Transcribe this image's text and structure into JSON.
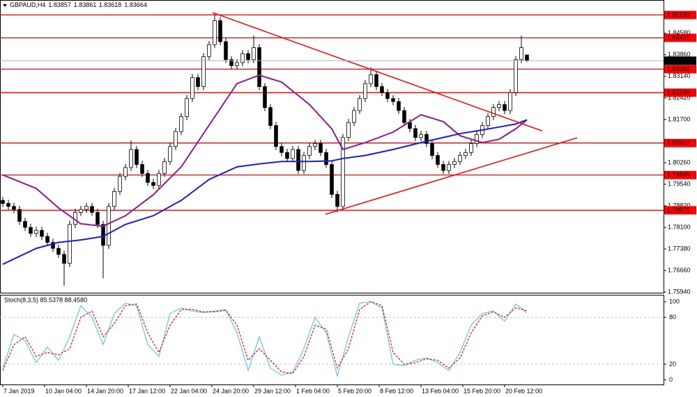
{
  "chart_data": [
    {
      "type": "candlestick",
      "title": "GBPAUD,H4",
      "up_color": "#ffffff",
      "down_color": "#000000",
      "wick_color": "#000000",
      "open": [
        1.79,
        1.789,
        1.788,
        1.787,
        1.783,
        1.781,
        1.779,
        1.78,
        1.778,
        1.776,
        1.774,
        1.772,
        1.769,
        1.782,
        1.786,
        1.787,
        1.788,
        1.786,
        1.782,
        1.775,
        1.788,
        1.793,
        1.798,
        1.801,
        1.807,
        1.802,
        1.799,
        1.796,
        1.795,
        1.799,
        1.803,
        1.808,
        1.813,
        1.818,
        1.824,
        1.831,
        1.828,
        1.838,
        1.842,
        1.85,
        1.843,
        1.837,
        1.835,
        1.836,
        1.839,
        1.837,
        1.841,
        1.828,
        1.821,
        1.815,
        1.808,
        1.806,
        1.804,
        1.807,
        1.8,
        1.805,
        1.808,
        1.809,
        1.806,
        1.802,
        1.792,
        1.788,
        1.811,
        1.816,
        1.82,
        1.824,
        1.829,
        1.832,
        1.828,
        1.826,
        1.824,
        1.823,
        1.82,
        1.816,
        1.814,
        1.811,
        1.812,
        1.809,
        1.805,
        1.802,
        1.8,
        1.802,
        1.803,
        1.805,
        1.806,
        1.809,
        1.812,
        1.815,
        1.818,
        1.821,
        1.822,
        1.82,
        1.826,
        1.837,
        1.83857
      ],
      "high": [
        1.7912,
        1.7902,
        1.7892,
        1.7882,
        1.7842,
        1.7822,
        1.7812,
        1.7812,
        1.7792,
        1.7772,
        1.7752,
        1.7732,
        1.7832,
        1.7872,
        1.7882,
        1.7892,
        1.7892,
        1.7872,
        1.7832,
        1.7892,
        1.7942,
        1.7992,
        1.8022,
        1.81,
        1.8082,
        1.8032,
        1.8002,
        1.7972,
        1.8002,
        1.8042,
        1.8092,
        1.8142,
        1.8192,
        1.8252,
        1.8322,
        1.8322,
        1.8392,
        1.8432,
        1.8525,
        1.8512,
        1.8442,
        1.8382,
        1.8372,
        1.8402,
        1.8402,
        1.845,
        1.8422,
        1.8292,
        1.8222,
        1.8162,
        1.8092,
        1.8072,
        1.8082,
        1.8082,
        1.8062,
        1.8092,
        1.8102,
        1.8102,
        1.8072,
        1.8032,
        1.7932,
        1.8122,
        1.8172,
        1.8212,
        1.8252,
        1.8302,
        1.8345,
        1.8332,
        1.8292,
        1.8272,
        1.8252,
        1.8242,
        1.8212,
        1.8172,
        1.8152,
        1.8132,
        1.8132,
        1.8102,
        1.8062,
        1.8032,
        1.8032,
        1.8042,
        1.8062,
        1.8072,
        1.8102,
        1.8132,
        1.8162,
        1.8192,
        1.8222,
        1.8232,
        1.8232,
        1.8272,
        1.8382,
        1.845,
        1.83861
      ],
      "low": [
        1.7878,
        1.7868,
        1.7858,
        1.7818,
        1.7798,
        1.7778,
        1.7778,
        1.7768,
        1.7748,
        1.7728,
        1.7708,
        1.7615,
        1.7678,
        1.7808,
        1.7848,
        1.7858,
        1.7848,
        1.7808,
        1.764,
        1.7738,
        1.7868,
        1.7918,
        1.7968,
        1.7998,
        1.8008,
        1.7978,
        1.7948,
        1.7938,
        1.7938,
        1.7978,
        1.8018,
        1.8068,
        1.8118,
        1.8168,
        1.8228,
        1.8268,
        1.8268,
        1.8368,
        1.8408,
        1.8418,
        1.8358,
        1.8338,
        1.8338,
        1.8348,
        1.8358,
        1.8358,
        1.8268,
        1.8198,
        1.8138,
        1.8068,
        1.8048,
        1.8028,
        1.8028,
        1.7988,
        1.7988,
        1.8038,
        1.8068,
        1.8048,
        1.8008,
        1.7908,
        1.786,
        1.7868,
        1.8098,
        1.8148,
        1.8188,
        1.8228,
        1.8278,
        1.8268,
        1.8248,
        1.8228,
        1.8218,
        1.8188,
        1.8148,
        1.8128,
        1.8098,
        1.8098,
        1.8078,
        1.8038,
        1.8008,
        1.7988,
        1.7988,
        1.8008,
        1.8018,
        1.8038,
        1.8048,
        1.8078,
        1.8108,
        1.8138,
        1.8168,
        1.8198,
        1.8188,
        1.8188,
        1.8248,
        1.8358,
        1.83618
      ],
      "close": [
        1.789,
        1.788,
        1.787,
        1.783,
        1.781,
        1.779,
        1.78,
        1.778,
        1.776,
        1.774,
        1.772,
        1.769,
        1.782,
        1.786,
        1.787,
        1.788,
        1.786,
        1.782,
        1.775,
        1.788,
        1.793,
        1.798,
        1.801,
        1.807,
        1.802,
        1.799,
        1.796,
        1.795,
        1.799,
        1.803,
        1.808,
        1.813,
        1.818,
        1.824,
        1.831,
        1.828,
        1.838,
        1.842,
        1.85,
        1.843,
        1.837,
        1.835,
        1.836,
        1.839,
        1.837,
        1.841,
        1.828,
        1.821,
        1.815,
        1.808,
        1.806,
        1.804,
        1.807,
        1.8,
        1.805,
        1.808,
        1.809,
        1.806,
        1.802,
        1.792,
        1.788,
        1.811,
        1.816,
        1.82,
        1.824,
        1.829,
        1.832,
        1.828,
        1.826,
        1.824,
        1.823,
        1.82,
        1.816,
        1.814,
        1.811,
        1.812,
        1.809,
        1.805,
        1.802,
        1.8,
        1.802,
        1.803,
        1.805,
        1.806,
        1.809,
        1.812,
        1.815,
        1.818,
        1.821,
        1.822,
        1.82,
        1.826,
        1.837,
        1.841,
        1.83664
      ],
      "lines": [
        {
          "color": "#8b1c8b",
          "x": [
            0,
            6,
            10,
            14,
            18,
            22,
            27,
            32,
            37,
            42,
            46,
            50,
            55,
            59,
            61,
            65,
            70,
            75,
            79,
            82,
            86,
            89,
            92,
            94
          ],
          "values": [
            1.7985,
            1.794,
            1.7875,
            1.7822,
            1.7814,
            1.7849,
            1.7919,
            1.8012,
            1.8151,
            1.829,
            1.8318,
            1.8295,
            1.822,
            1.8139,
            1.807,
            1.8093,
            1.8128,
            1.8186,
            1.8163,
            1.8116,
            1.8093,
            1.8104,
            1.8139,
            1.8169
          ]
        },
        {
          "color": "#1a1ae0",
          "x": [
            0,
            6,
            10,
            14,
            18,
            22,
            27,
            32,
            37,
            42,
            46,
            50,
            55,
            59,
            61,
            65,
            70,
            75,
            79,
            82,
            86,
            89,
            92,
            94
          ],
          "values": [
            1.7687,
            1.774,
            1.776,
            1.7768,
            1.778,
            1.782,
            1.7849,
            1.79,
            1.797,
            1.8012,
            1.8022,
            1.803,
            1.803,
            1.8032,
            1.804,
            1.805,
            1.807,
            1.8093,
            1.811,
            1.8123,
            1.8135,
            1.8145,
            1.8155,
            1.8169
          ]
        }
      ],
      "trendlines": [
        {
          "x": [
            37.6,
            96.75
          ],
          "y": [
            1.8527,
            1.8132
          ]
        },
        {
          "x": [
            57.9,
            103
          ],
          "y": [
            1.7854,
            1.8109
          ]
        }
      ],
      "level_color": "#ff0000",
      "levels": [
        {
          "value": 1.8519,
          "label": "1.85190"
        },
        {
          "value": 1.84427,
          "label": "1.84427"
        },
        {
          "value": 1.83381,
          "label": "1.83381"
        },
        {
          "value": 1.82596,
          "label": "1.82596"
        },
        {
          "value": 1.80917,
          "label": "1.80917"
        },
        {
          "value": 1.79848,
          "label": "1.79848"
        },
        {
          "value": 1.78671,
          "label": "1.78671"
        }
      ],
      "xlim": [
        -0.5,
        118.5
      ],
      "ylim": [
        1.7592,
        1.8562
      ],
      "yticks": [
        {
          "value": 1.8458,
          "label": "1.84580"
        },
        {
          "value": 1.8386,
          "label": "1.83860"
        },
        {
          "value": 1.8314,
          "label": "1.83140"
        },
        {
          "value": 1.8242,
          "label": "1.82420"
        },
        {
          "value": 1.817,
          "label": "1.81700"
        },
        {
          "value": 1.8026,
          "label": "1.80260"
        },
        {
          "value": 1.7954,
          "label": "1.79540"
        },
        {
          "value": 1.7882,
          "label": "1.78820"
        },
        {
          "value": 1.781,
          "label": "1.78100"
        },
        {
          "value": 1.7738,
          "label": "1.77380"
        },
        {
          "value": 1.7666,
          "label": "1.76660"
        },
        {
          "value": 1.7594,
          "label": "1.75940"
        }
      ],
      "xticks": [
        {
          "value": 0,
          "label": "7 Jan 2019"
        },
        {
          "value": 7.5,
          "label": "10 Jan 04:00"
        },
        {
          "value": 15,
          "label": "14 Jan 20:00"
        },
        {
          "value": 22.5,
          "label": "17 Jan 12:00"
        },
        {
          "value": 30,
          "label": "22 Jan 04:00"
        },
        {
          "value": 37.5,
          "label": "24 Jan 20:00"
        },
        {
          "value": 45,
          "label": "29 Jan 12:00"
        },
        {
          "value": 52.5,
          "label": "1 Feb 04:00"
        },
        {
          "value": 60,
          "label": "5 Feb 20:00"
        },
        {
          "value": 67.5,
          "label": "8 Feb 12:00"
        },
        {
          "value": 75,
          "label": "13 Feb 04:00"
        },
        {
          "value": 82.5,
          "label": "15 Feb 20:00"
        },
        {
          "value": 90,
          "label": "20 Feb 12:00"
        }
      ]
    },
    {
      "type": "line",
      "title": "Stoch(8,3,5) 85.5378 88.4580",
      "x": [
        0,
        2,
        4,
        6,
        8,
        10,
        12,
        14,
        16,
        18,
        20,
        22,
        24,
        26,
        28,
        30,
        32,
        34,
        36,
        38,
        40,
        42,
        44,
        46,
        48,
        50,
        52,
        54,
        56,
        58,
        60,
        62,
        64,
        66,
        68,
        70,
        72,
        74,
        76,
        78,
        80,
        82,
        84,
        86,
        88,
        90,
        92,
        94
      ],
      "series": [
        {
          "color": "#5ec8e0",
          "dash": false,
          "values": [
            15,
            58,
            50,
            22,
            42,
            25,
            55,
            95,
            80,
            45,
            85,
            98,
            95,
            45,
            30,
            85,
            92,
            88,
            86,
            88,
            90,
            60,
            12,
            55,
            15,
            6,
            10,
            40,
            80,
            60,
            5,
            55,
            98,
            100,
            92,
            20,
            18,
            25,
            28,
            22,
            12,
            35,
            70,
            85,
            88,
            75,
            97,
            85.5378
          ]
        },
        {
          "color": "#ff0000",
          "dash": true,
          "values": [
            12,
            45,
            55,
            30,
            35,
            32,
            40,
            80,
            88,
            55,
            72,
            95,
            97,
            60,
            35,
            70,
            90,
            90,
            87,
            87,
            89,
            70,
            25,
            40,
            25,
            10,
            8,
            30,
            70,
            65,
            15,
            40,
            90,
            100,
            95,
            35,
            20,
            22,
            27,
            25,
            15,
            28,
            60,
            82,
            87,
            80,
            92,
            88.458
          ]
        }
      ],
      "levels": [
        20,
        80
      ],
      "xlim": [
        -0.5,
        118.5
      ],
      "ylim": [
        -5,
        107
      ],
      "yticks": [
        0,
        20,
        80,
        100
      ]
    }
  ]
}
